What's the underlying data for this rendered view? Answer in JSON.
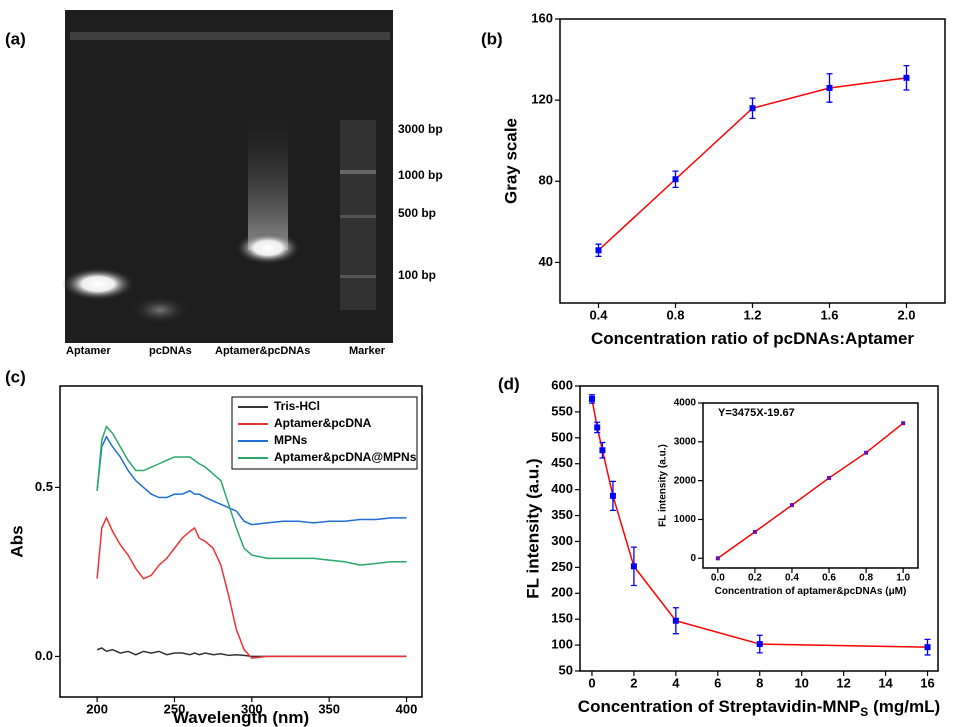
{
  "gel": {
    "panel_label": "(a)",
    "lanes": [
      "Aptamer",
      "pcDNAs",
      "Aptamer&pcDNAs",
      "Marker"
    ],
    "markers": [
      "3000 bp",
      "1000 bp",
      "500 bp",
      "100 bp"
    ]
  },
  "chart_data": [
    {
      "type": "line",
      "panel_label": "(b)",
      "xlabel": "Concentration ratio of pcDNAs:Aptamer",
      "ylabel": "Gray scale",
      "xlim": [
        0.2,
        2.2
      ],
      "ylim": [
        20,
        160
      ],
      "xticks": [
        0.4,
        0.8,
        1.2,
        1.6,
        {
          "value": 2.0,
          "label": "2.0"
        }
      ],
      "yticks": [
        40,
        80,
        120,
        160
      ],
      "x": [
        0.4,
        0.8,
        1.2,
        1.6,
        2.0
      ],
      "series": [
        {
          "color": "#ff0000",
          "marker_color": "#0000ff",
          "values": [
            46,
            81,
            116,
            126,
            131
          ],
          "errors": [
            3,
            4,
            5,
            7,
            6
          ]
        }
      ]
    },
    {
      "type": "line",
      "panel_label": "(c)",
      "xlabel": "Wavelength (nm)",
      "ylabel": "Abs",
      "xlim": [
        176,
        410
      ],
      "ylim": [
        -0.12,
        0.8
      ],
      "xticks": [
        200,
        250,
        300,
        350,
        400
      ],
      "yticks": [
        {
          "value": 0,
          "label": "0.0"
        },
        0.5
      ],
      "legend": "upper right",
      "x": [
        200,
        203,
        206,
        210,
        215,
        220,
        225,
        230,
        235,
        240,
        245,
        250,
        255,
        260,
        263,
        266,
        270,
        275,
        280,
        285,
        290,
        295,
        300,
        310,
        320,
        330,
        340,
        350,
        360,
        370,
        380,
        390,
        400
      ],
      "series": [
        {
          "name": "Tris-HCl",
          "color": "#333333",
          "values": [
            0.02,
            0.025,
            0.015,
            0.02,
            0.01,
            0.015,
            0.005,
            0.015,
            0.01,
            0.015,
            0.005,
            0.01,
            0.01,
            0.005,
            0.01,
            0.005,
            0.01,
            0.005,
            0.008,
            0.003,
            0.005,
            0.003,
            0,
            0,
            0,
            0,
            0,
            0,
            0,
            0,
            0,
            0,
            0
          ]
        },
        {
          "name": "Aptamer&pcDNA",
          "color": "#ee3333",
          "values": [
            0.23,
            0.38,
            0.41,
            0.37,
            0.33,
            0.3,
            0.26,
            0.23,
            0.24,
            0.27,
            0.29,
            0.32,
            0.35,
            0.37,
            0.38,
            0.35,
            0.34,
            0.32,
            0.27,
            0.18,
            0.08,
            0.02,
            -0.005,
            0,
            0,
            0,
            0,
            0,
            0,
            0,
            0,
            0,
            0
          ]
        },
        {
          "name": "MPNs",
          "color": "#1f6fd6",
          "values": [
            0.49,
            0.62,
            0.65,
            0.62,
            0.59,
            0.55,
            0.52,
            0.5,
            0.48,
            0.47,
            0.47,
            0.48,
            0.48,
            0.49,
            0.48,
            0.48,
            0.47,
            0.46,
            0.45,
            0.44,
            0.43,
            0.4,
            0.39,
            0.395,
            0.4,
            0.4,
            0.395,
            0.4,
            0.4,
            0.405,
            0.405,
            0.41,
            0.41
          ]
        },
        {
          "name": "Aptamer&pcDNA@MPNs",
          "color": "#2aa86a",
          "values": [
            0.49,
            0.64,
            0.68,
            0.66,
            0.62,
            0.58,
            0.55,
            0.55,
            0.56,
            0.57,
            0.58,
            0.59,
            0.59,
            0.59,
            0.58,
            0.57,
            0.56,
            0.54,
            0.52,
            0.45,
            0.38,
            0.32,
            0.3,
            0.29,
            0.29,
            0.29,
            0.29,
            0.285,
            0.28,
            0.27,
            0.275,
            0.28,
            0.28
          ]
        }
      ]
    },
    {
      "type": "line",
      "panel_label": "(d)",
      "xlabel": "Concentration of Streptavidin-MNP",
      "xlabel_subscript": "S",
      "xlabel_unit": "(mg/mL)",
      "ylabel": "FL intensity (a.u.)",
      "xlim": [
        -0.57,
        16.5
      ],
      "ylim": [
        50,
        600
      ],
      "xticks": [
        0,
        2,
        4,
        6,
        8,
        10,
        12,
        14,
        16
      ],
      "yticks": [
        50,
        100,
        150,
        200,
        250,
        300,
        350,
        400,
        450,
        500,
        550,
        600
      ],
      "x": [
        0,
        0.25,
        0.5,
        1,
        2,
        4,
        8,
        16
      ],
      "series": [
        {
          "color": "#ff0000",
          "marker_color": "#0000ff",
          "values": [
            575,
            520,
            476,
            388,
            252,
            147,
            102,
            96
          ],
          "errors": [
            8,
            10,
            15,
            28,
            37,
            25,
            17,
            15
          ]
        }
      ]
    },
    {
      "type": "line",
      "xlabel": "Concentration of aptamer&pcDNAs (μM)",
      "ylabel": "FL intensity (a.u.)",
      "annotation": "Y=3475X-19.67",
      "xlim": [
        -0.08,
        1.08
      ],
      "ylim": [
        -250,
        4000
      ],
      "xticks": [
        {
          "value": 0,
          "label": "0.0"
        },
        0.2,
        0.4,
        0.6,
        0.8,
        {
          "value": 1,
          "label": "1.0"
        }
      ],
      "yticks": [
        0,
        1000,
        2000,
        3000,
        4000
      ],
      "x": [
        0,
        0.2,
        0.4,
        0.6,
        0.8,
        1.0
      ],
      "series": [
        {
          "color": "#ff0000",
          "marker_color": "#6a0dad",
          "values": [
            0,
            680,
            1370,
            2070,
            2720,
            3480
          ]
        }
      ]
    }
  ]
}
